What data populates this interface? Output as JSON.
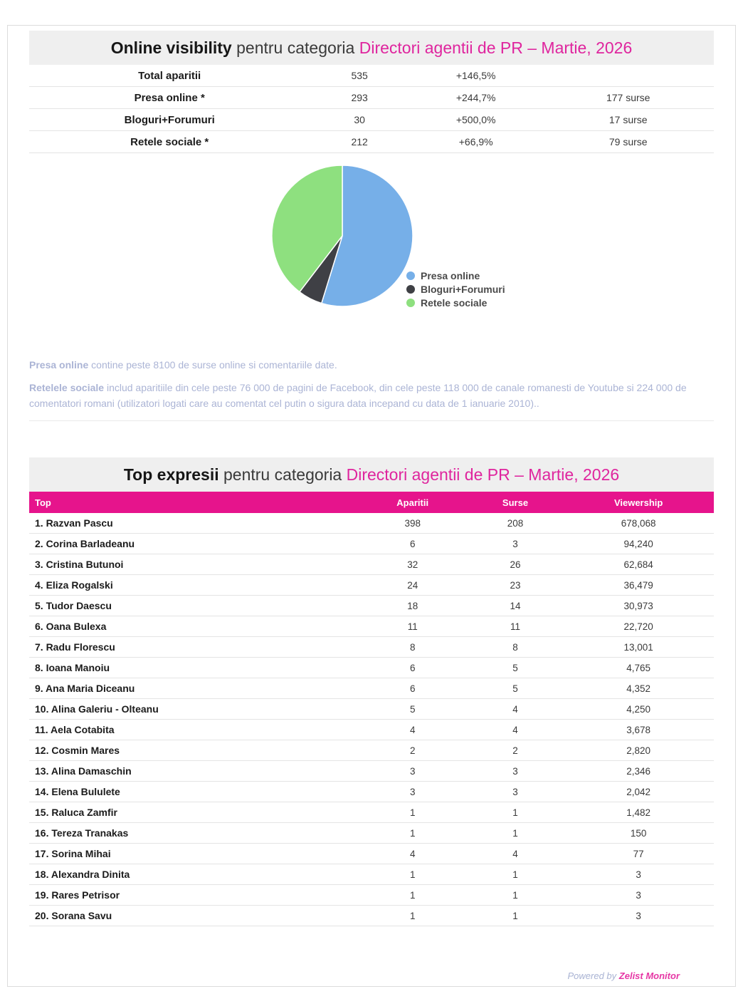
{
  "colors": {
    "accent_pink": "#df259e",
    "table_header_magenta": "#e6148c",
    "bar_gray": "#efefef",
    "note_text": "#abb4d5"
  },
  "section_visibility": {
    "title_bold": "Online visibility",
    "title_rest": " pentru categoria ",
    "title_category": "Directori agentii de PR – Martie, 2026",
    "stats": [
      {
        "label": "Total aparitii",
        "value": "535",
        "change": "+146,5%",
        "sources": ""
      },
      {
        "label": "Presa online *",
        "value": "293",
        "change": "+244,7%",
        "sources": "177 surse"
      },
      {
        "label": "Bloguri+Forumuri",
        "value": "30",
        "change": "+500,0%",
        "sources": "17 surse"
      },
      {
        "label": "Retele sociale *",
        "value": "212",
        "change": "+66,9%",
        "sources": "79 surse"
      }
    ],
    "notes": [
      {
        "lead": "Presa online",
        "text": " contine peste 8100 de surse online si comentariile date."
      },
      {
        "lead": "Retelele sociale",
        "text": " includ aparitiile din cele peste 76 000 de pagini de Facebook, din cele peste 118 000 de canale romanesti de Youtube si 224 000 de comentatori romani (utilizatori logati care au comentat cel putin o sigura data incepand cu data de 1 ianuarie 2010).."
      }
    ]
  },
  "chart_data": {
    "type": "pie",
    "title": "Online visibility pentru categoria Directori agentii de PR – Martie, 2026",
    "labels": [
      "Presa online",
      "Bloguri+Forumuri",
      "Retele sociale"
    ],
    "values": [
      293,
      30,
      212
    ],
    "percentages": [
      54.8,
      5.6,
      39.6
    ],
    "colors": [
      "#76afe8",
      "#3f4045",
      "#8ee07f"
    ],
    "start_angle_deg": 0,
    "direction": "clockwise",
    "legend_position": "right"
  },
  "section_top": {
    "title_bold": "Top expresii",
    "title_rest": " pentru categoria ",
    "title_category": "Directori agentii de PR – Martie, 2026",
    "columns": [
      "Top",
      "Aparitii",
      "Surse",
      "Viewership"
    ],
    "rows": [
      {
        "name": "1. Razvan Pascu",
        "aparitii": "398",
        "surse": "208",
        "viewership": "678,068"
      },
      {
        "name": "2. Corina Barladeanu",
        "aparitii": "6",
        "surse": "3",
        "viewership": "94,240"
      },
      {
        "name": "3. Cristina Butunoi",
        "aparitii": "32",
        "surse": "26",
        "viewership": "62,684"
      },
      {
        "name": "4. Eliza Rogalski",
        "aparitii": "24",
        "surse": "23",
        "viewership": "36,479"
      },
      {
        "name": "5. Tudor Daescu",
        "aparitii": "18",
        "surse": "14",
        "viewership": "30,973"
      },
      {
        "name": "6. Oana Bulexa",
        "aparitii": "11",
        "surse": "11",
        "viewership": "22,720"
      },
      {
        "name": "7. Radu Florescu",
        "aparitii": "8",
        "surse": "8",
        "viewership": "13,001"
      },
      {
        "name": "8. Ioana Manoiu",
        "aparitii": "6",
        "surse": "5",
        "viewership": "4,765"
      },
      {
        "name": "9. Ana Maria Diceanu",
        "aparitii": "6",
        "surse": "5",
        "viewership": "4,352"
      },
      {
        "name": "10. Alina Galeriu - Olteanu",
        "aparitii": "5",
        "surse": "4",
        "viewership": "4,250"
      },
      {
        "name": "11. Aela Cotabita",
        "aparitii": "4",
        "surse": "4",
        "viewership": "3,678"
      },
      {
        "name": "12. Cosmin Mares",
        "aparitii": "2",
        "surse": "2",
        "viewership": "2,820"
      },
      {
        "name": "13. Alina Damaschin",
        "aparitii": "3",
        "surse": "3",
        "viewership": "2,346"
      },
      {
        "name": "14. Elena Bululete",
        "aparitii": "3",
        "surse": "3",
        "viewership": "2,042"
      },
      {
        "name": "15. Raluca Zamfir",
        "aparitii": "1",
        "surse": "1",
        "viewership": "1,482"
      },
      {
        "name": "16. Tereza Tranakas",
        "aparitii": "1",
        "surse": "1",
        "viewership": "150"
      },
      {
        "name": "17. Sorina Mihai",
        "aparitii": "4",
        "surse": "4",
        "viewership": "77"
      },
      {
        "name": "18. Alexandra Dinita",
        "aparitii": "1",
        "surse": "1",
        "viewership": "3"
      },
      {
        "name": "19. Rares Petrisor",
        "aparitii": "1",
        "surse": "1",
        "viewership": "3"
      },
      {
        "name": "20. Sorana Savu",
        "aparitii": "1",
        "surse": "1",
        "viewership": "3"
      }
    ]
  },
  "footer": {
    "powered_by": "Powered by ",
    "brand": "Zelist Monitor"
  }
}
